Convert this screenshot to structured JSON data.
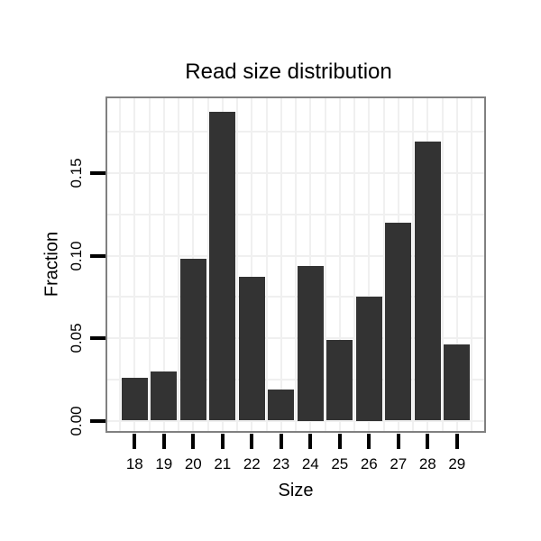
{
  "chart_data": {
    "type": "bar",
    "title": "Read size distribution",
    "xlabel": "Size",
    "ylabel": "Fraction",
    "categories": [
      "18",
      "19",
      "20",
      "21",
      "22",
      "23",
      "24",
      "25",
      "26",
      "27",
      "28",
      "29"
    ],
    "values": [
      0.026,
      0.03,
      0.098,
      0.187,
      0.087,
      0.019,
      0.094,
      0.049,
      0.075,
      0.12,
      0.169,
      0.046
    ],
    "ylim": [
      -0.007,
      0.196
    ],
    "ytick_values": [
      0,
      0.05,
      0.1,
      0.15
    ],
    "ytick_labels": [
      "0.00",
      "0.05",
      "0.10",
      "0.15"
    ],
    "minor_grid_step": 0.025,
    "grid": "major+minor",
    "legend": "none",
    "colors": {
      "bar": "#333333",
      "grid": "#f0f0f0",
      "panel_border": "#808080",
      "panel_background": "#ffffff",
      "tick": "#000000",
      "text": "#000000"
    }
  }
}
